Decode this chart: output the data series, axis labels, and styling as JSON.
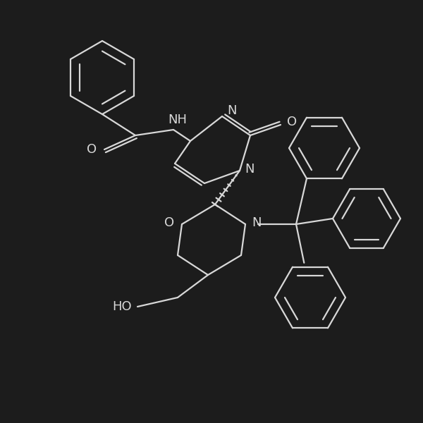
{
  "background_color": "#1c1c1c",
  "line_color": "#d8d8d8",
  "line_width": 1.6,
  "fig_size": [
    6.0,
    6.0
  ],
  "dpi": 100,
  "xlim": [
    0,
    600
  ],
  "ylim": [
    0,
    600
  ]
}
